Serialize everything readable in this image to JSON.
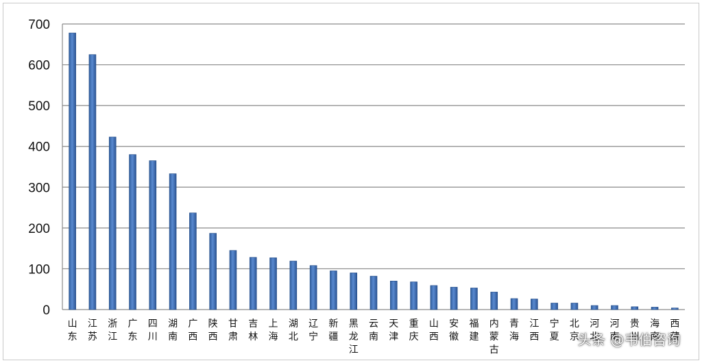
{
  "chart_data": {
    "type": "bar",
    "title": "",
    "xlabel": "",
    "ylabel": "",
    "ylim": [
      0,
      700
    ],
    "yticks": [
      0,
      100,
      200,
      300,
      400,
      500,
      600,
      700
    ],
    "grid": true,
    "legend": "none",
    "bar_color": "#3e6fb5",
    "categories": [
      "山东",
      "江苏",
      "浙江",
      "广东",
      "四川",
      "湖南",
      "广西",
      "陕西",
      "甘肃",
      "吉林",
      "上海",
      "湖北",
      "辽宁",
      "新疆",
      "黑龙江",
      "云南",
      "天津",
      "重庆",
      "山西",
      "安徽",
      "福建",
      "内蒙古",
      "青海",
      "江西",
      "宁夏",
      "北京",
      "河北",
      "河南",
      "贵州",
      "海南",
      "西藏"
    ],
    "values": [
      678,
      625,
      423,
      380,
      365,
      333,
      237,
      187,
      145,
      128,
      127,
      119,
      108,
      95,
      90,
      82,
      70,
      68,
      59,
      55,
      53,
      43,
      27,
      26,
      16,
      16,
      10,
      10,
      7,
      6,
      4
    ]
  },
  "watermark": "头条 @韦伯咨询"
}
